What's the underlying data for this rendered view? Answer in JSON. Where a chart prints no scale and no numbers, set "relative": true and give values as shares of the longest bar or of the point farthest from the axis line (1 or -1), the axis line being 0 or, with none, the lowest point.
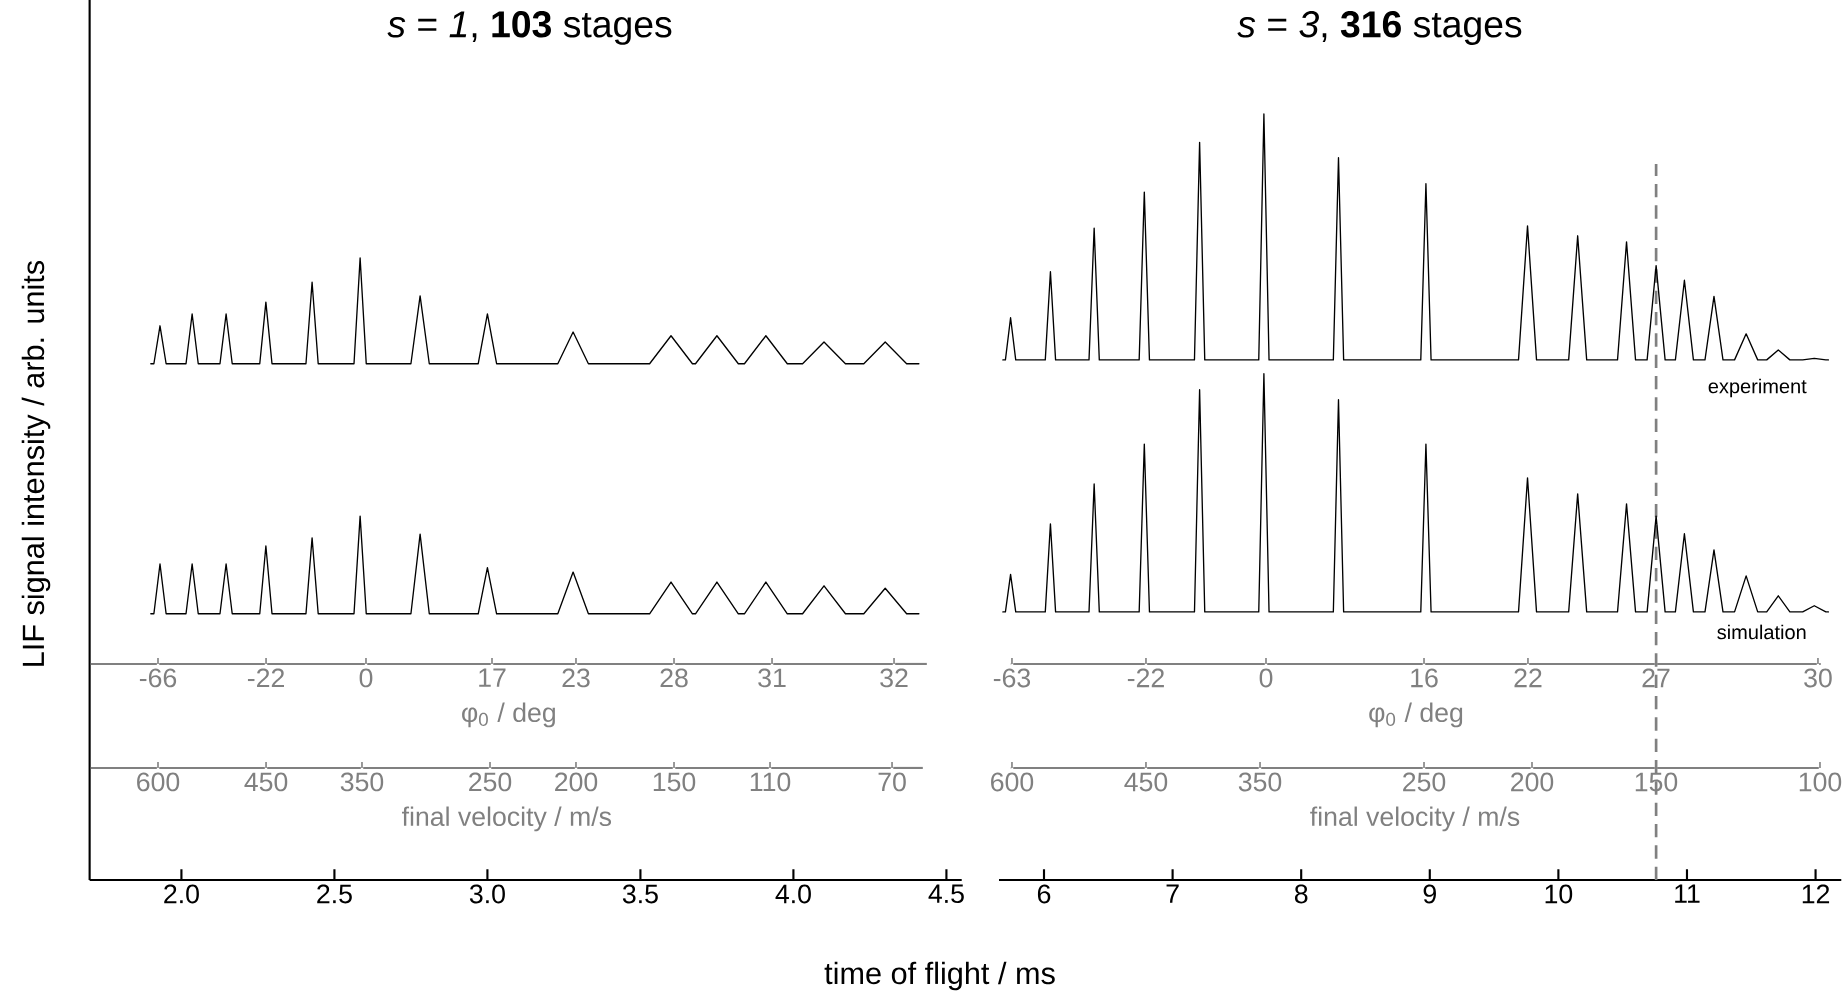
{
  "chart_data": [
    {
      "type": "line",
      "title": "*s* = *1*, **103** stages",
      "ylabel": "LIF signal intensity / arb. units",
      "relative": true,
      "xlim": [
        1.7,
        4.55
      ],
      "xticks": [
        {
          "value": 2,
          "label": "2.0"
        },
        {
          "value": 2.5,
          "label": "2.5"
        },
        {
          "value": 3,
          "label": "3.0"
        },
        {
          "value": 3.5,
          "label": "3.5"
        },
        {
          "value": 4,
          "label": "4.0"
        },
        {
          "value": 4.5,
          "label": "4.5"
        }
      ],
      "annotations": [
        "-66",
        "-22",
        "0",
        "17",
        "23",
        "28",
        "31",
        "32",
        "φ$_{0}$ / deg",
        "600",
        "450",
        "350",
        "250",
        "200",
        "150",
        "110",
        "70",
        "final velocity / m/s"
      ],
      "series": [
        {
          "color": "#000000",
          "x": [
            1.9,
            1.91,
            1.93,
            1.95,
            2.015,
            2.035,
            2.055,
            2.126,
            2.146,
            2.166,
            2.256,
            2.276,
            2.296,
            2.407,
            2.427,
            2.447,
            2.564,
            2.584,
            2.604,
            2.75,
            2.78,
            2.81,
            2.97,
            3.0,
            3.03,
            3.23,
            3.28,
            3.33,
            3.53,
            3.6,
            3.67,
            3.68,
            3.75,
            3.82,
            3.84,
            3.91,
            3.98,
            4.03,
            4.1,
            4.17,
            4.23,
            4.3,
            4.37,
            4.41
          ],
          "values": [
            0.83,
            0.83,
            0.891,
            0.83,
            0.83,
            0.91,
            0.83,
            0.83,
            0.91,
            0.83,
            0.83,
            0.929,
            0.83,
            0.83,
            0.961,
            0.83,
            0.83,
            1,
            0.83,
            0.83,
            0.939,
            0.83,
            0.83,
            0.91,
            0.83,
            0.83,
            0.881,
            0.83,
            0.83,
            0.875,
            0.83,
            0.83,
            0.875,
            0.83,
            0.83,
            0.875,
            0.83,
            0.83,
            0.865,
            0.83,
            0.83,
            0.865,
            0.83,
            0.83
          ]
        },
        {
          "color": "#000000",
          "x": [
            1.9,
            1.91,
            1.93,
            1.95,
            2.015,
            2.035,
            2.055,
            2.126,
            2.146,
            2.166,
            2.256,
            2.276,
            2.296,
            2.407,
            2.427,
            2.447,
            2.564,
            2.584,
            2.604,
            2.75,
            2.78,
            2.81,
            2.97,
            3.0,
            3.03,
            3.23,
            3.28,
            3.33,
            3.53,
            3.6,
            3.67,
            3.68,
            3.75,
            3.82,
            3.84,
            3.91,
            3.98,
            4.03,
            4.1,
            4.17,
            4.23,
            4.3,
            4.37,
            4.41
          ],
          "values": [
            0.428,
            0.428,
            0.508,
            0.428,
            0.428,
            0.508,
            0.428,
            0.428,
            0.508,
            0.428,
            0.428,
            0.537,
            0.428,
            0.428,
            0.55,
            0.428,
            0.428,
            0.585,
            0.428,
            0.428,
            0.556,
            0.428,
            0.428,
            0.502,
            0.428,
            0.428,
            0.495,
            0.428,
            0.428,
            0.479,
            0.428,
            0.428,
            0.479,
            0.428,
            0.428,
            0.479,
            0.428,
            0.428,
            0.473,
            0.428,
            0.428,
            0.469,
            0.428,
            0.428
          ]
        }
      ]
    },
    {
      "type": "line",
      "title": "*s* = *3*, **316** stages",
      "xlabel": "time of flight / ms",
      "relative": true,
      "xlim": [
        5.65,
        12.2
      ],
      "xticks": [
        6,
        7,
        8,
        9,
        10,
        11,
        12
      ],
      "annotations": [
        "-63",
        "-22",
        "0",
        "16",
        "22",
        "27",
        "30",
        "φ$_{0}$ / deg",
        "600",
        "450",
        "350",
        "250",
        "200",
        "150",
        "100",
        "final velocity / m/s"
      ],
      "ref_lines": [
        {
          "axis": "x",
          "value": 10.76,
          "color": "#808080",
          "line_style": "dashed"
        }
      ],
      "series": [
        {
          "name": "experiment",
          "color": "#000000",
          "x": [
            5.68,
            5.7,
            5.74,
            5.78,
            6.01,
            6.05,
            6.09,
            6.35,
            6.39,
            6.43,
            6.74,
            6.78,
            6.82,
            7.17,
            7.21,
            7.25,
            7.67,
            7.71,
            7.75,
            8.25,
            8.29,
            8.33,
            8.93,
            8.97,
            9.01,
            9.69,
            9.76,
            9.83,
            10.08,
            10.15,
            10.22,
            10.46,
            10.53,
            10.6,
            10.69,
            10.76,
            10.83,
            10.91,
            10.98,
            11.05,
            11.14,
            11.21,
            11.28,
            11.37,
            11.46,
            11.55,
            11.62,
            11.71,
            11.8,
            11.9,
            11.99,
            12.08,
            12.1
          ],
          "values": [
            0.679,
            0.679,
            0.734,
            0.679,
            0.679,
            0.794,
            0.679,
            0.679,
            0.851,
            0.679,
            0.679,
            0.898,
            0.679,
            0.679,
            0.963,
            0.679,
            0.679,
            1,
            0.679,
            0.679,
            0.943,
            0.679,
            0.679,
            0.909,
            0.679,
            0.679,
            0.854,
            0.679,
            0.679,
            0.841,
            0.679,
            0.679,
            0.833,
            0.679,
            0.679,
            0.802,
            0.679,
            0.679,
            0.783,
            0.679,
            0.679,
            0.762,
            0.679,
            0.679,
            0.713,
            0.679,
            0.679,
            0.692,
            0.679,
            0.679,
            0.681,
            0.679,
            0.679
          ]
        },
        {
          "name": "simulation",
          "color": "#000000",
          "x": [
            5.68,
            5.7,
            5.74,
            5.78,
            6.01,
            6.05,
            6.09,
            6.35,
            6.39,
            6.43,
            6.74,
            6.78,
            6.82,
            7.17,
            7.21,
            7.25,
            7.67,
            7.71,
            7.75,
            8.25,
            8.29,
            8.33,
            8.93,
            8.97,
            9.01,
            9.69,
            9.76,
            9.83,
            10.08,
            10.15,
            10.22,
            10.46,
            10.53,
            10.6,
            10.69,
            10.76,
            10.83,
            10.91,
            10.98,
            11.05,
            11.14,
            11.21,
            11.28,
            11.37,
            11.46,
            11.55,
            11.62,
            11.71,
            11.8,
            11.9,
            11.99,
            12.08,
            12.1
          ],
          "values": [
            0.35,
            0.35,
            0.399,
            0.35,
            0.35,
            0.465,
            0.35,
            0.35,
            0.517,
            0.35,
            0.35,
            0.569,
            0.35,
            0.35,
            0.64,
            0.35,
            0.35,
            0.661,
            0.35,
            0.35,
            0.627,
            0.35,
            0.35,
            0.569,
            0.35,
            0.35,
            0.525,
            0.35,
            0.35,
            0.504,
            0.35,
            0.35,
            0.491,
            0.35,
            0.35,
            0.475,
            0.35,
            0.35,
            0.452,
            0.35,
            0.35,
            0.431,
            0.35,
            0.35,
            0.397,
            0.35,
            0.35,
            0.371,
            0.35,
            0.35,
            0.358,
            0.35,
            0.35
          ]
        }
      ]
    }
  ]
}
